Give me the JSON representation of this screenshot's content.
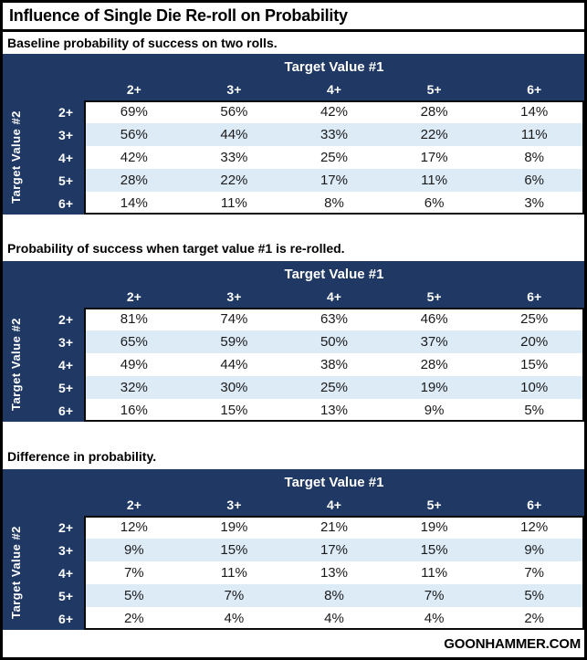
{
  "page": {
    "title": "Influence of Single Die Re-roll on Probability",
    "footer": "GOONHAMMER.COM"
  },
  "colors": {
    "header_navy": "#1F3864",
    "stripe_blue": "#DDEBF7",
    "border_black": "#000000"
  },
  "chart_data": [
    {
      "type": "table",
      "title": "Baseline probability of success on two rolls.",
      "col_axis": "Target Value #1",
      "row_axis": "Target Value #2",
      "columns": [
        "2+",
        "3+",
        "4+",
        "5+",
        "6+"
      ],
      "rows": [
        "2+",
        "3+",
        "4+",
        "5+",
        "6+"
      ],
      "unit": "%",
      "values": [
        [
          69,
          56,
          42,
          28,
          14
        ],
        [
          56,
          44,
          33,
          22,
          11
        ],
        [
          42,
          33,
          25,
          17,
          8
        ],
        [
          28,
          22,
          17,
          11,
          6
        ],
        [
          14,
          11,
          8,
          6,
          3
        ]
      ]
    },
    {
      "type": "table",
      "title": "Probability of success when target value #1 is re-rolled.",
      "col_axis": "Target Value #1",
      "row_axis": "Target Value #2",
      "columns": [
        "2+",
        "3+",
        "4+",
        "5+",
        "6+"
      ],
      "rows": [
        "2+",
        "3+",
        "4+",
        "5+",
        "6+"
      ],
      "unit": "%",
      "values": [
        [
          81,
          74,
          63,
          46,
          25
        ],
        [
          65,
          59,
          50,
          37,
          20
        ],
        [
          49,
          44,
          38,
          28,
          15
        ],
        [
          32,
          30,
          25,
          19,
          10
        ],
        [
          16,
          15,
          13,
          9,
          5
        ]
      ]
    },
    {
      "type": "table",
      "title": "Difference in probability.",
      "col_axis": "Target Value #1",
      "row_axis": "Target Value #2",
      "columns": [
        "2+",
        "3+",
        "4+",
        "5+",
        "6+"
      ],
      "rows": [
        "2+",
        "3+",
        "4+",
        "5+",
        "6+"
      ],
      "unit": "%",
      "values": [
        [
          12,
          19,
          21,
          19,
          12
        ],
        [
          9,
          15,
          17,
          15,
          9
        ],
        [
          7,
          11,
          13,
          11,
          7
        ],
        [
          5,
          7,
          8,
          7,
          5
        ],
        [
          2,
          4,
          4,
          4,
          2
        ]
      ]
    }
  ]
}
